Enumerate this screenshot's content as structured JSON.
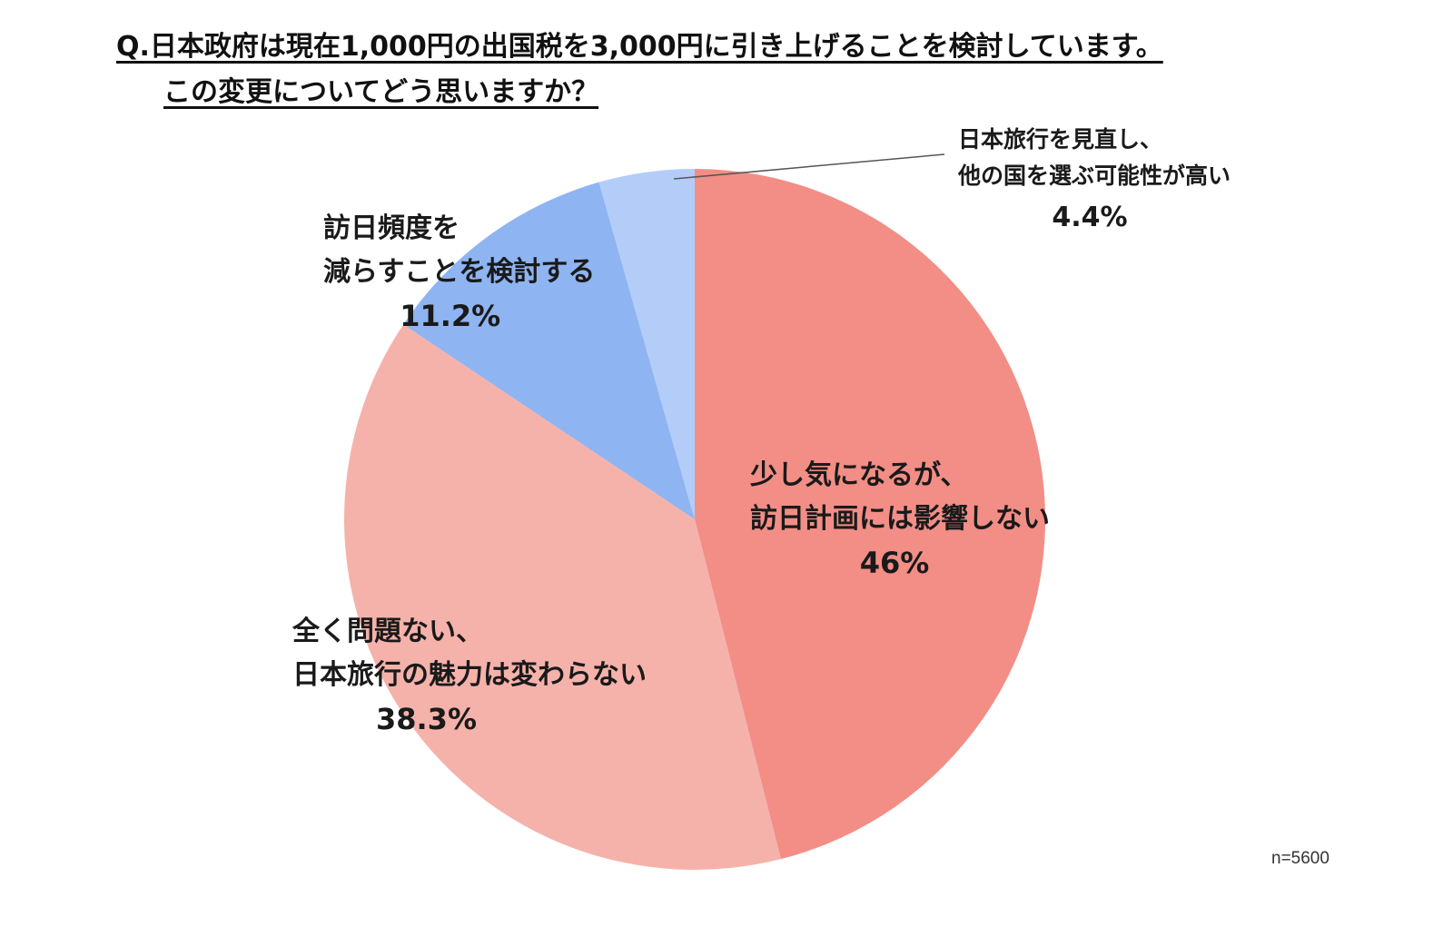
{
  "title": {
    "line1": "Q.日本政府は現在1,000円の出国税を3,000円に引き上げることを検討しています。",
    "line2": "この変更についてどう思いますか？"
  },
  "sample_note": "n=5600",
  "labels": {
    "s1": {
      "line1": "少し気になるが、",
      "line2": "訪日計画には影響しない",
      "pct": "46%"
    },
    "s2": {
      "line1": "全く問題ない、",
      "line2": "日本旅行の魅力は変わらない",
      "pct": "38.3%"
    },
    "s3": {
      "line1": "訪日頻度を",
      "line2": "減らすことを検討する",
      "pct": "11.2%"
    },
    "s4": {
      "line1": "日本旅行を見直し、",
      "line2": "他の国を選ぶ可能性が高い",
      "pct": "4.4%"
    }
  },
  "chart_data": {
    "type": "pie",
    "title": "Q.日本政府は現在1,000円の出国税を3,000円に引き上げることを検討しています。この変更についてどう思いますか？",
    "categories": [
      "少し気になるが、訪日計画には影響しない",
      "全く問題ない、日本旅行の魅力は変わらない",
      "訪日頻度を減らすことを検討する",
      "日本旅行を見直し、他の国を選ぶ可能性が高い"
    ],
    "values": [
      46,
      38.3,
      11.2,
      4.4
    ],
    "unit": "%",
    "colors": [
      "#f28e86",
      "#f5b2ab",
      "#8fb4f2",
      "#b3cdf8"
    ],
    "start_angle": "12 o'clock",
    "direction": "clockwise",
    "legend": "none (direct labels)",
    "annotations": [
      "n=5600"
    ]
  }
}
